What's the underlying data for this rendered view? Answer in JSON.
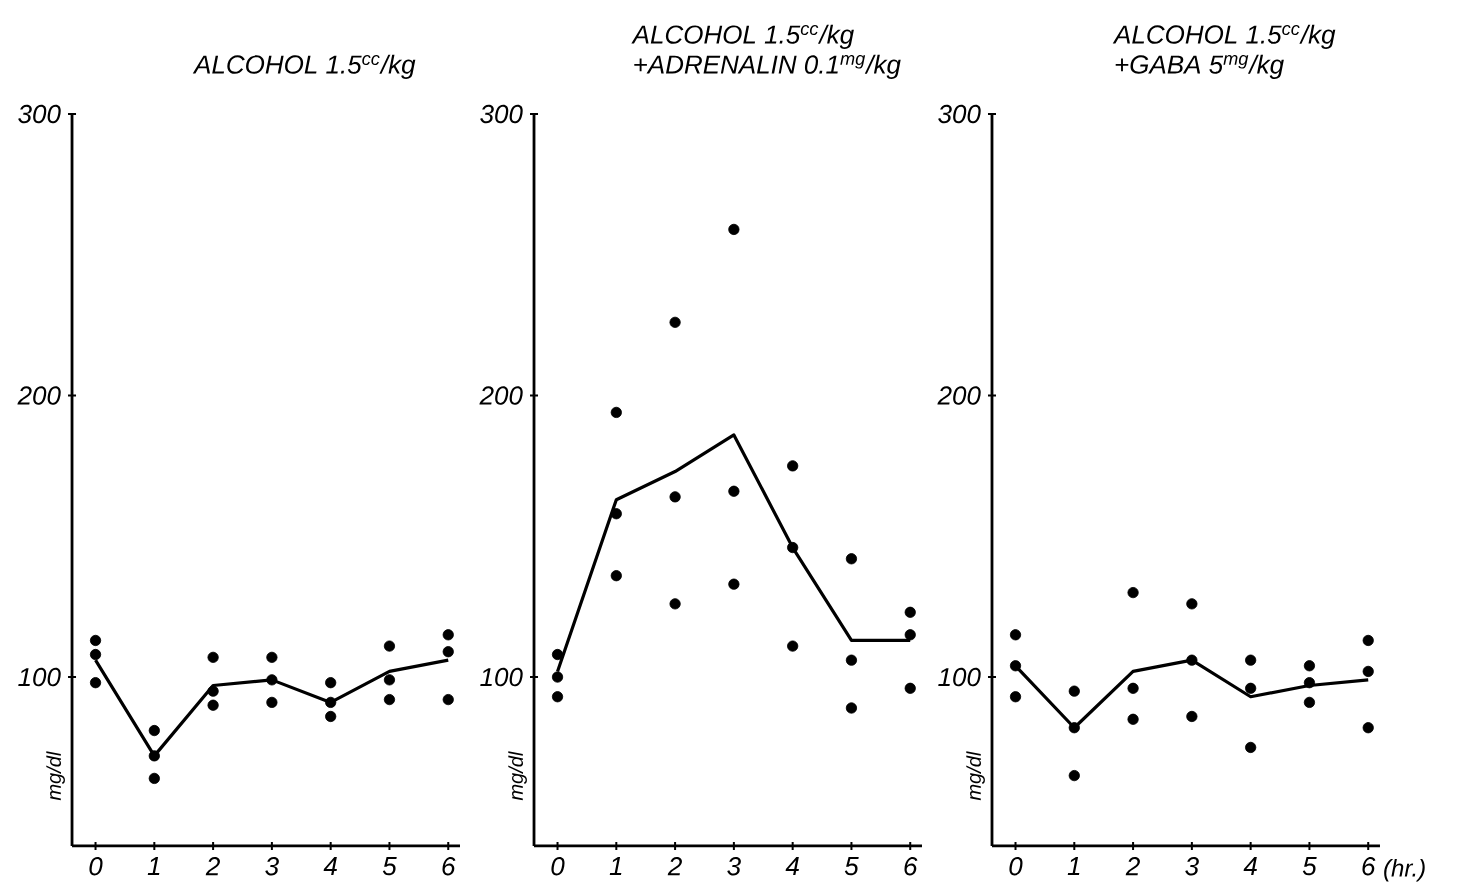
{
  "chart_data": [
    {
      "type": "line",
      "title": "ALCOHOL 1.5$^{cc}$/kg",
      "ylabel": "mg/dl",
      "xlim": [
        -0.4,
        6.2
      ],
      "ylim": [
        40,
        300
      ],
      "xticks": [
        0,
        1,
        2,
        3,
        4,
        5,
        6
      ],
      "yticks": [
        100,
        200,
        300
      ],
      "series": [
        {
          "type": "scatter",
          "color": "#000000",
          "marker": "circle",
          "x": [
            0,
            0,
            0,
            1,
            1,
            1,
            2,
            2,
            2,
            3,
            3,
            3,
            4,
            4,
            4,
            5,
            5,
            5,
            6,
            6,
            6
          ],
          "values": [
            113,
            108,
            98,
            81,
            72,
            64,
            107,
            95,
            90,
            107,
            99,
            91,
            98,
            91,
            86,
            111,
            99,
            92,
            115,
            109,
            92
          ]
        },
        {
          "type": "line",
          "color": "#000000",
          "marker": "none",
          "x": [
            0,
            1,
            2,
            3,
            4,
            5,
            6
          ],
          "values": [
            106,
            72,
            97,
            99,
            91,
            102,
            106
          ]
        }
      ]
    },
    {
      "type": "line",
      "title": "ALCOHOL 1.5$^{cc}$/kg",
      "subtitle": "+ADRENALIN 0.1$^{mg}$/kg",
      "ylabel": "mg/dl",
      "xlim": [
        -0.4,
        6.2
      ],
      "ylim": [
        40,
        300
      ],
      "xticks": [
        0,
        1,
        2,
        3,
        4,
        5,
        6
      ],
      "yticks": [
        100,
        200,
        300
      ],
      "series": [
        {
          "type": "scatter",
          "color": "#000000",
          "marker": "circle",
          "x": [
            0,
            0,
            0,
            1,
            1,
            1,
            2,
            2,
            2,
            3,
            3,
            3,
            4,
            4,
            4,
            5,
            5,
            5,
            6,
            6,
            6
          ],
          "values": [
            108,
            100,
            93,
            194,
            158,
            136,
            226,
            164,
            126,
            259,
            166,
            133,
            175,
            146,
            111,
            142,
            106,
            89,
            123,
            115,
            96
          ]
        },
        {
          "type": "line",
          "color": "#000000",
          "marker": "none",
          "x": [
            0,
            1,
            2,
            3,
            4,
            5,
            6
          ],
          "values": [
            102,
            163,
            173,
            186,
            146,
            113,
            113
          ]
        }
      ]
    },
    {
      "type": "line",
      "title": "ALCOHOL 1.5$^{cc}$/kg",
      "subtitle": "+GABA 5$^{mg}$/kg",
      "xlabel": "(hr.)",
      "ylabel": "mg/dl",
      "xlim": [
        -0.4,
        6.2
      ],
      "ylim": [
        40,
        300
      ],
      "xticks": [
        0,
        1,
        2,
        3,
        4,
        5,
        6
      ],
      "yticks": [
        100,
        200,
        300
      ],
      "series": [
        {
          "type": "scatter",
          "color": "#000000",
          "marker": "circle",
          "x": [
            0,
            0,
            0,
            1,
            1,
            1,
            2,
            2,
            2,
            3,
            3,
            3,
            4,
            4,
            4,
            5,
            5,
            5,
            6,
            6,
            6
          ],
          "values": [
            115,
            104,
            93,
            95,
            82,
            65,
            130,
            96,
            85,
            126,
            106,
            86,
            106,
            96,
            75,
            104,
            98,
            91,
            113,
            102,
            82
          ]
        },
        {
          "type": "line",
          "color": "#000000",
          "marker": "none",
          "x": [
            0,
            1,
            2,
            3,
            4,
            5,
            6
          ],
          "values": [
            104,
            82,
            102,
            106,
            93,
            97,
            99
          ]
        }
      ]
    }
  ]
}
